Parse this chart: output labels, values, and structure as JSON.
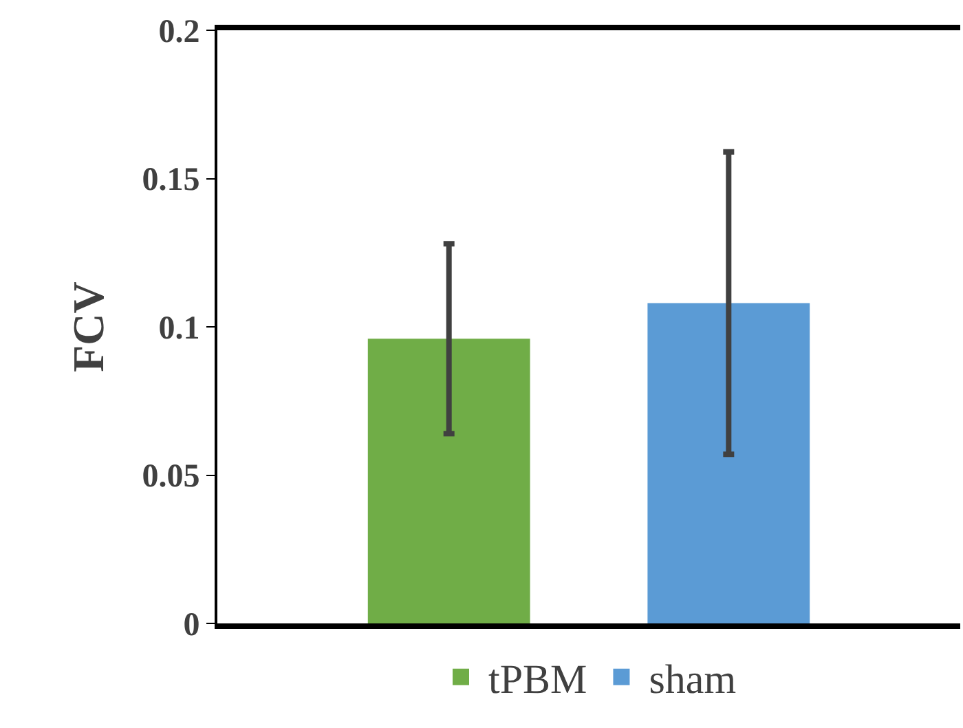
{
  "chart_data": {
    "type": "bar",
    "ylabel": "FCV",
    "categories": [
      null
    ],
    "series": [
      {
        "name": "tPBM",
        "color": "#70ad47",
        "values": [
          0.096
        ],
        "errors": [
          0.032
        ]
      },
      {
        "name": "sham",
        "color": "#5b9bd5",
        "values": [
          0.108
        ],
        "errors": [
          0.051
        ]
      }
    ],
    "ylim": [
      0,
      0.2
    ],
    "yticks": [
      0,
      0.05,
      0.1,
      0.15,
      0.2
    ],
    "grid": false,
    "legend": "bottom"
  }
}
